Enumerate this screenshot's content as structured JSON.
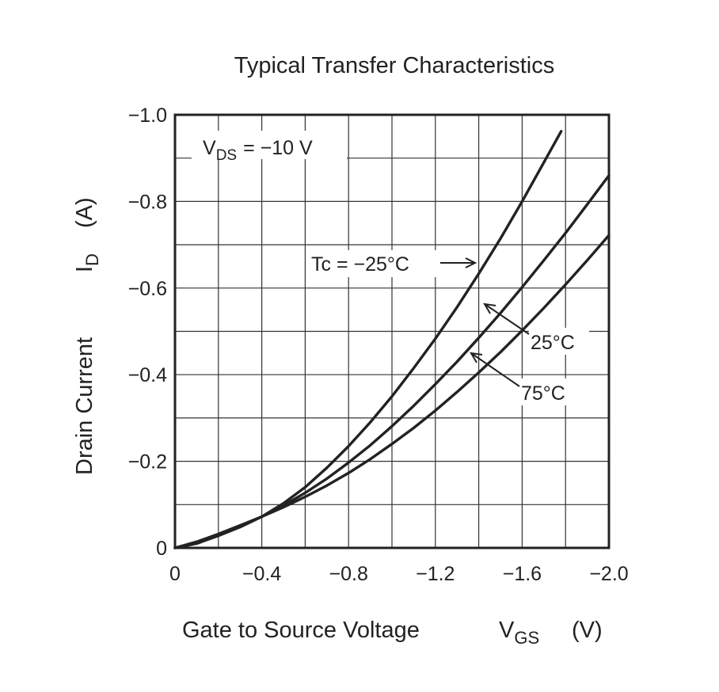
{
  "chart_data": {
    "type": "line",
    "title": "Typical Transfer Characteristics",
    "xlabel": {
      "text": "Gate to Source Voltage",
      "symbol": "V",
      "subscript": "GS",
      "unit": "(V)"
    },
    "ylabel": {
      "text": "Drain Current",
      "symbol": "I",
      "subscript": "D",
      "unit": "(A)"
    },
    "xlim": [
      0,
      -2.0
    ],
    "ylim": [
      0,
      -1.0
    ],
    "x_ticks": [
      0,
      -0.4,
      -0.8,
      -1.2,
      -1.6,
      -2.0
    ],
    "x_tick_labels": [
      "0",
      "−0.4",
      "−0.8",
      "−1.2",
      "−1.6",
      "−2.0"
    ],
    "y_ticks": [
      0,
      -0.2,
      -0.4,
      -0.6,
      -0.8,
      -1.0
    ],
    "y_tick_labels": [
      "0",
      "−0.2",
      "−0.4",
      "−0.6",
      "−0.8",
      "−1.0"
    ],
    "grid": true,
    "grid_minor_step_x": 0.2,
    "grid_minor_step_y": 0.1,
    "condition": {
      "symbol": "V",
      "subscript": "DS",
      "value": "= −10 V"
    },
    "series": [
      {
        "name": "Tc = −25°C",
        "x": [
          0,
          -0.1,
          -0.2,
          -0.3,
          -0.4,
          -0.5,
          -0.6,
          -0.7,
          -0.8,
          -0.9,
          -1.0,
          -1.1,
          -1.2,
          -1.3,
          -1.4,
          -1.5,
          -1.6,
          -1.7,
          -1.78
        ],
        "y": [
          0,
          -0.01,
          -0.028,
          -0.048,
          -0.072,
          -0.103,
          -0.14,
          -0.185,
          -0.235,
          -0.29,
          -0.35,
          -0.415,
          -0.483,
          -0.556,
          -0.633,
          -0.714,
          -0.8,
          -0.89,
          -0.962
        ]
      },
      {
        "name": "25°C",
        "x": [
          0,
          -0.1,
          -0.2,
          -0.3,
          -0.4,
          -0.5,
          -0.6,
          -0.7,
          -0.8,
          -0.9,
          -1.0,
          -1.1,
          -1.2,
          -1.3,
          -1.4,
          -1.5,
          -1.6,
          -1.7,
          -1.8,
          -1.9,
          -2.0
        ],
        "y": [
          0,
          -0.012,
          -0.03,
          -0.05,
          -0.072,
          -0.098,
          -0.127,
          -0.16,
          -0.197,
          -0.237,
          -0.281,
          -0.328,
          -0.378,
          -0.43,
          -0.485,
          -0.542,
          -0.602,
          -0.664,
          -0.727,
          -0.793,
          -0.86
        ]
      },
      {
        "name": "75°C",
        "x": [
          0,
          -0.1,
          -0.2,
          -0.3,
          -0.4,
          -0.5,
          -0.6,
          -0.7,
          -0.8,
          -0.9,
          -1.0,
          -1.1,
          -1.2,
          -1.3,
          -1.4,
          -1.5,
          -1.6,
          -1.7,
          -1.8,
          -1.9,
          -2.0
        ],
        "y": [
          0,
          -0.014,
          -0.032,
          -0.052,
          -0.072,
          -0.094,
          -0.118,
          -0.144,
          -0.173,
          -0.205,
          -0.24,
          -0.277,
          -0.317,
          -0.36,
          -0.405,
          -0.452,
          -0.502,
          -0.554,
          -0.608,
          -0.664,
          -0.722
        ]
      }
    ],
    "annotations": [
      {
        "text": "Tc = −25°C",
        "series": 0
      },
      {
        "text": "25°C",
        "series": 1
      },
      {
        "text": "75°C",
        "series": 2
      }
    ]
  }
}
